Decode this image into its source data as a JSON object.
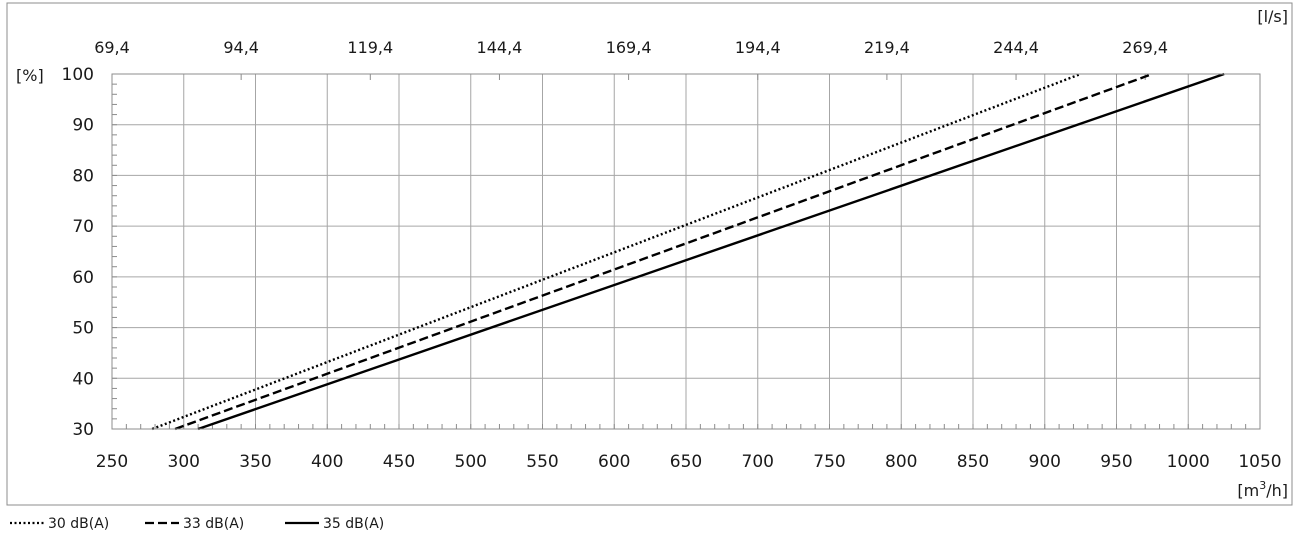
{
  "chart_data": {
    "type": "line",
    "xlabel": "[m³/h]",
    "xlabel_parts": {
      "base": "[m",
      "sup": "3",
      "tail": "/h]"
    },
    "ylabel": "[%]",
    "secondary_xlabel": "[l/s]",
    "xlim": [
      250,
      1050
    ],
    "ylim": [
      30,
      100
    ],
    "x_ticks": [
      250,
      300,
      350,
      400,
      450,
      500,
      550,
      600,
      650,
      700,
      750,
      800,
      850,
      900,
      950,
      1000,
      1050
    ],
    "y_ticks": [
      30,
      40,
      50,
      60,
      70,
      80,
      90,
      100
    ],
    "secondary_x_ticks": [
      {
        "x": 250,
        "label": "69,4"
      },
      {
        "x": 340,
        "label": "94,4"
      },
      {
        "x": 430,
        "label": "119,4"
      },
      {
        "x": 520,
        "label": "144,4"
      },
      {
        "x": 610,
        "label": "169,4"
      },
      {
        "x": 700,
        "label": "194,4"
      },
      {
        "x": 790,
        "label": "219,4"
      },
      {
        "x": 880,
        "label": "244,4"
      },
      {
        "x": 970,
        "label": "269,4"
      }
    ],
    "grid": true,
    "legend_position": "bottom-left",
    "series": [
      {
        "name": "30 dB(A)",
        "style": "dotted",
        "color": "#000000",
        "points": [
          [
            278,
            30
          ],
          [
            925,
            100
          ]
        ]
      },
      {
        "name": "33 dB(A)",
        "style": "dashed",
        "color": "#000000",
        "points": [
          [
            294,
            30
          ],
          [
            975,
            100
          ]
        ]
      },
      {
        "name": "35 dB(A)",
        "style": "solid",
        "color": "#000000",
        "points": [
          [
            310,
            30
          ],
          [
            1025,
            100
          ]
        ]
      }
    ]
  }
}
